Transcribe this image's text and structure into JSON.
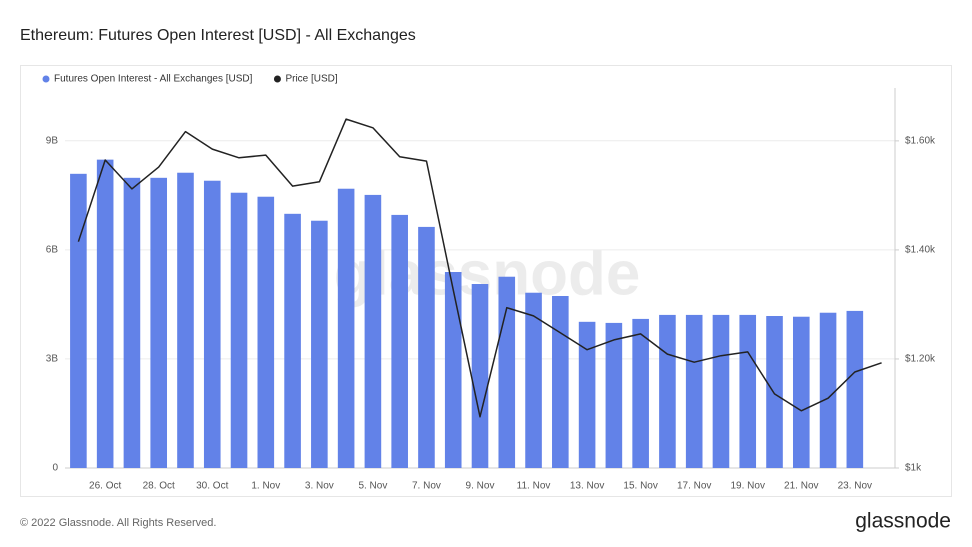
{
  "chart_data": {
    "type": "bar",
    "title": "Ethereum: Futures Open Interest [USD] - All Exchanges",
    "watermark": "glassnode",
    "footer": "© 2022 Glassnode. All Rights Reserved.",
    "logo": "glassnode",
    "categories": [
      null,
      "26. Oct",
      null,
      "28. Oct",
      null,
      "30. Oct",
      null,
      "1. Nov",
      null,
      "3. Nov",
      null,
      "5. Nov",
      null,
      "7. Nov",
      null,
      "9. Nov",
      null,
      "11. Nov",
      null,
      "13. Nov",
      null,
      "15. Nov",
      null,
      "17. Nov",
      null,
      "19. Nov",
      null,
      "21. Nov",
      null,
      "23. Nov",
      null
    ],
    "series": [
      {
        "name": "Futures Open Interest - All Exchanges [USD]",
        "type": "bar",
        "color": "#6282e8",
        "values": [
          8.09,
          8.48,
          7.98,
          7.98,
          8.12,
          7.9,
          7.57,
          7.46,
          6.99,
          6.8,
          7.68,
          7.51,
          6.96,
          6.63,
          5.39,
          5.06,
          5.26,
          4.82,
          4.73,
          4.02,
          3.99,
          4.1,
          4.21,
          4.21,
          4.21,
          4.21,
          4.18,
          4.16,
          4.27,
          4.32,
          null
        ]
      },
      {
        "name": "Price [USD]",
        "type": "line",
        "axis": "y2",
        "color": "#222222",
        "values": [
          1415,
          1565,
          1512,
          1552,
          1617,
          1585,
          1569,
          1574,
          1517,
          1525,
          1640,
          1624,
          1571,
          1563,
          1327,
          1094,
          1294,
          1279,
          1248,
          1217,
          1235,
          1246,
          1209,
          1194,
          1206,
          1213,
          1136,
          1105,
          1128,
          1176,
          1193
        ]
      }
    ],
    "ylim": [
      0,
      10.45
    ],
    "yticks": [
      0,
      {
        "value": 3,
        "label": "3B"
      },
      {
        "value": 6,
        "label": "6B"
      },
      {
        "value": 9,
        "label": "9B"
      }
    ],
    "y2lim": [
      1000,
      1697
    ],
    "y2ticks": [
      {
        "value": 1000,
        "label": "$1k"
      },
      {
        "value": 1200,
        "label": "$1.20k"
      },
      {
        "value": 1400,
        "label": "$1.40k"
      },
      {
        "value": 1600,
        "label": "$1.60k"
      }
    ],
    "grid": true,
    "legend": "top-left"
  }
}
